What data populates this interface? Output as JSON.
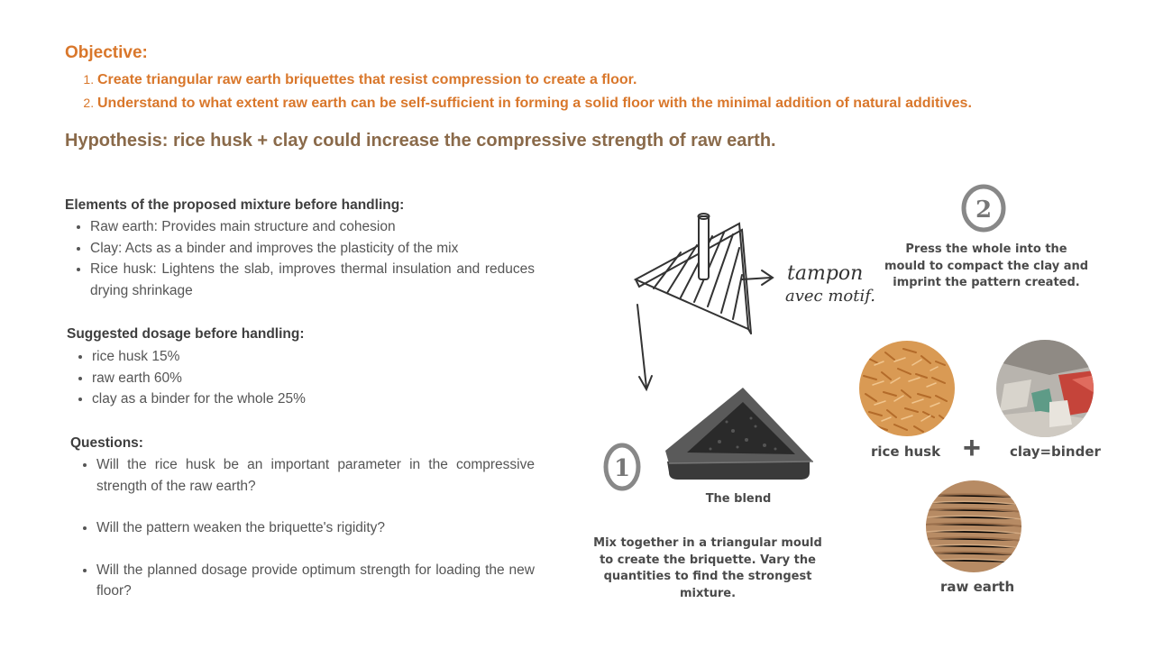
{
  "objective": {
    "title": "Objective:",
    "items": [
      "Create triangular raw earth briquettes that resist compression to create a floor.",
      "Understand to what extent raw earth can be self-sufficient in forming a solid floor with the minimal addition of natural additives."
    ]
  },
  "hypothesis": "Hypothesis: rice husk + clay could increase the compressive strength of raw earth.",
  "elements": {
    "title": "Elements of the proposed mixture before handling:",
    "items": [
      "Raw earth: Provides main structure and cohesion",
      "Clay: Acts as a binder and improves the plasticity of the mix",
      "Rice husk: Lightens the slab, improves thermal insulation and reduces drying shrinkage"
    ]
  },
  "dosage": {
    "title": "Suggested dosage before handling:",
    "items": [
      "rice husk 15%",
      "raw earth 60%",
      "clay as a binder for the whole 25%"
    ]
  },
  "questions": {
    "title": "Questions:",
    "items": [
      "Will the rice husk be an important parameter in the compressive strength of the raw earth?",
      "Will the pattern weaken the briquette's rigidity?",
      "Will the planned dosage provide optimum strength for loading the new floor?"
    ]
  },
  "sketch": {
    "annotation_line1": "tampon",
    "annotation_line2": "avec motif."
  },
  "step2": {
    "number": "2",
    "caption": "Press the whole into the mould to compact the clay and imprint the pattern created."
  },
  "step1": {
    "number": "1",
    "blend_label": "The blend",
    "caption": "Mix together in a triangular mould to create the briquette. Vary the quantities to find the strongest mixture."
  },
  "ingredients": {
    "rice_husk": "rice husk",
    "plus": "+",
    "clay": "clay=binder",
    "raw_earth": "raw earth"
  },
  "colors": {
    "orange": "#d9772b",
    "brown": "#8a6a4a",
    "text": "#444444"
  }
}
